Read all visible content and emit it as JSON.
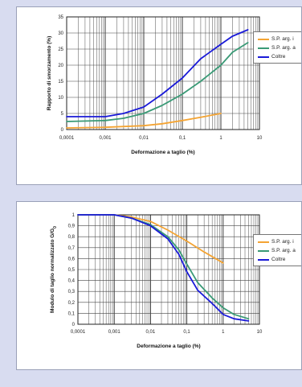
{
  "colors": {
    "page_bg": "#d8dcf0",
    "series_orange": "#f4a433",
    "series_green": "#3a9a76",
    "series_blue": "#1a1ad8"
  },
  "chart_data": [
    {
      "type": "line",
      "xlabel": "Deformazione a taglio (%)",
      "ylabel": "Rapporto di smorzamento (%)",
      "xscale": "log",
      "xlim": [
        0.0001,
        10
      ],
      "ylim": [
        0,
        35
      ],
      "xticks": [
        "0,0001",
        "0,001",
        "0,01",
        "0,1",
        "1",
        "10"
      ],
      "yticks": [
        "0",
        "5",
        "10",
        "15",
        "20",
        "25",
        "30",
        "35"
      ],
      "ytick_values": [
        0,
        5,
        10,
        15,
        20,
        25,
        30,
        35
      ],
      "grid": true,
      "legend_placement": "right",
      "series": [
        {
          "name": "S.P. arg. i",
          "color": "#f4a433",
          "x": [
            0.0001,
            0.001,
            0.01,
            0.03,
            0.1,
            0.3,
            1
          ],
          "y": [
            0.5,
            0.7,
            1.2,
            1.8,
            2.8,
            3.8,
            5
          ]
        },
        {
          "name": "S.P. arg. a",
          "color": "#3a9a76",
          "x": [
            0.0001,
            0.001,
            0.003,
            0.01,
            0.03,
            0.1,
            0.3,
            1,
            2,
            5
          ],
          "y": [
            2.5,
            2.8,
            3.5,
            5,
            7.5,
            11,
            15,
            20,
            24,
            27
          ]
        },
        {
          "name": "Coltre",
          "color": "#1a1ad8",
          "x": [
            0.0001,
            0.001,
            0.003,
            0.01,
            0.03,
            0.1,
            0.3,
            1,
            2,
            5
          ],
          "y": [
            4,
            4,
            5,
            7,
            11,
            16,
            22,
            26.5,
            29,
            31
          ]
        }
      ]
    },
    {
      "type": "line",
      "xlabel": "Deformazione a taglio (%)",
      "ylabel": "Modulo di taglio normalizzato G/G",
      "ylabel_sub": "0",
      "xscale": "log",
      "xlim": [
        0.0001,
        10
      ],
      "ylim": [
        0,
        1
      ],
      "xticks": [
        "0,0001",
        "0,001",
        "0,01",
        "0,1",
        "1",
        "10"
      ],
      "yticks": [
        "0",
        "0,1",
        "0,2",
        "0,3",
        "0,4",
        "0,5",
        "0,6",
        "0,7",
        "0,8",
        "0,9",
        "1"
      ],
      "ytick_values": [
        0,
        0.1,
        0.2,
        0.3,
        0.4,
        0.5,
        0.6,
        0.7,
        0.8,
        0.9,
        1
      ],
      "grid": true,
      "legend_placement": "right",
      "series": [
        {
          "name": "S.P. arg. i",
          "color": "#f4a433",
          "x": [
            0.0001,
            0.001,
            0.003,
            0.01,
            0.03,
            0.1,
            0.3,
            1
          ],
          "y": [
            1,
            1,
            0.98,
            0.94,
            0.86,
            0.76,
            0.66,
            0.56
          ]
        },
        {
          "name": "S.P. arg. a",
          "color": "#3a9a76",
          "x": [
            0.0001,
            0.001,
            0.003,
            0.01,
            0.03,
            0.06,
            0.1,
            0.2,
            0.5,
            1,
            2,
            5
          ],
          "y": [
            1,
            1,
            0.97,
            0.91,
            0.8,
            0.68,
            0.55,
            0.38,
            0.24,
            0.15,
            0.09,
            0.05
          ]
        },
        {
          "name": "Coltre",
          "color": "#1a1ad8",
          "x": [
            0.0001,
            0.001,
            0.003,
            0.01,
            0.03,
            0.06,
            0.1,
            0.2,
            0.5,
            1,
            2,
            5
          ],
          "y": [
            1,
            1,
            0.97,
            0.9,
            0.78,
            0.64,
            0.48,
            0.31,
            0.19,
            0.09,
            0.05,
            0.03
          ]
        }
      ]
    }
  ]
}
